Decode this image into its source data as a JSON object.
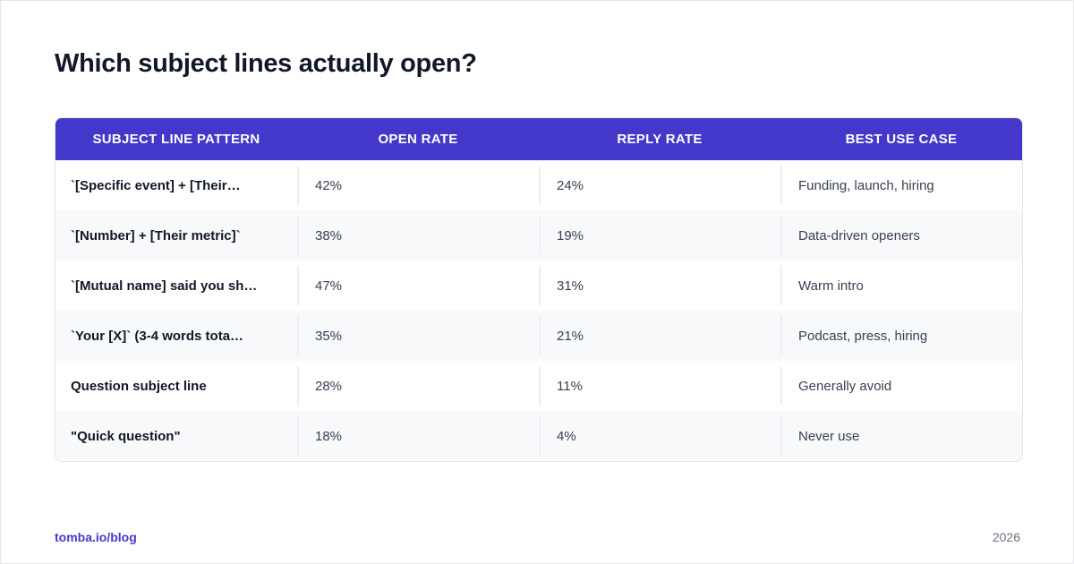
{
  "title": "Which subject lines actually open?",
  "table": {
    "columns": [
      "SUBJECT LINE PATTERN",
      "OPEN RATE",
      "REPLY RATE",
      "BEST USE CASE"
    ],
    "rows": [
      [
        "`[Specific event] + [Their…",
        "42%",
        "24%",
        "Funding, launch, hiring"
      ],
      [
        "`[Number] + [Their metric]`",
        "38%",
        "19%",
        "Data-driven openers"
      ],
      [
        "`[Mutual name] said you sh…",
        "47%",
        "31%",
        "Warm intro"
      ],
      [
        "`Your [X]` (3-4 words tota…",
        "35%",
        "21%",
        "Podcast, press, hiring"
      ],
      [
        "Question subject line",
        "28%",
        "11%",
        "Generally avoid"
      ],
      [
        "\"Quick question\"",
        "18%",
        "4%",
        "Never use"
      ]
    ]
  },
  "footer": {
    "source": "tomba.io/blog",
    "year": "2026"
  },
  "colors": {
    "accent": "#4338ca",
    "title": "#111827",
    "row_alt": "#f8f9fb"
  }
}
